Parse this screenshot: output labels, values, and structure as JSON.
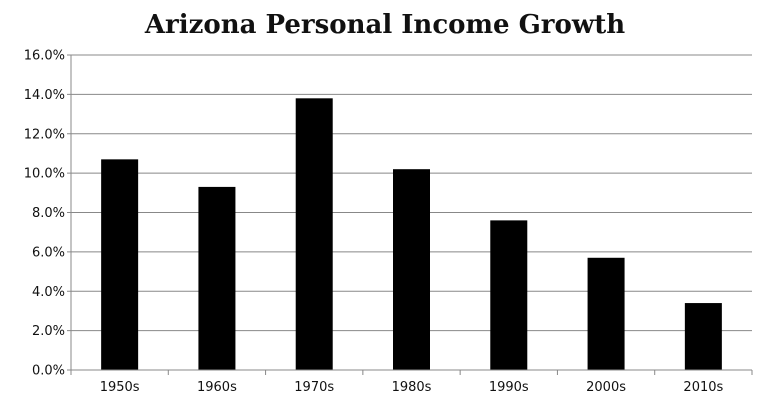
{
  "chart_data": {
    "type": "bar",
    "title": "Arizona Personal Income Growth",
    "xlabel": "",
    "ylabel": "",
    "categories": [
      "1950s",
      "1960s",
      "1970s",
      "1980s",
      "1990s",
      "2000s",
      "2010s"
    ],
    "values": [
      10.7,
      9.3,
      13.8,
      10.2,
      7.6,
      5.7,
      3.4
    ],
    "ylim": [
      0,
      16
    ],
    "y_ticks": [
      "0.0%",
      "2.0%",
      "4.0%",
      "6.0%",
      "8.0%",
      "10.0%",
      "12.0%",
      "14.0%",
      "16.0%"
    ],
    "grid": true,
    "legend": "none",
    "bar_color": "#000000",
    "grid_color": "#888888",
    "axis_color": "#888888"
  }
}
